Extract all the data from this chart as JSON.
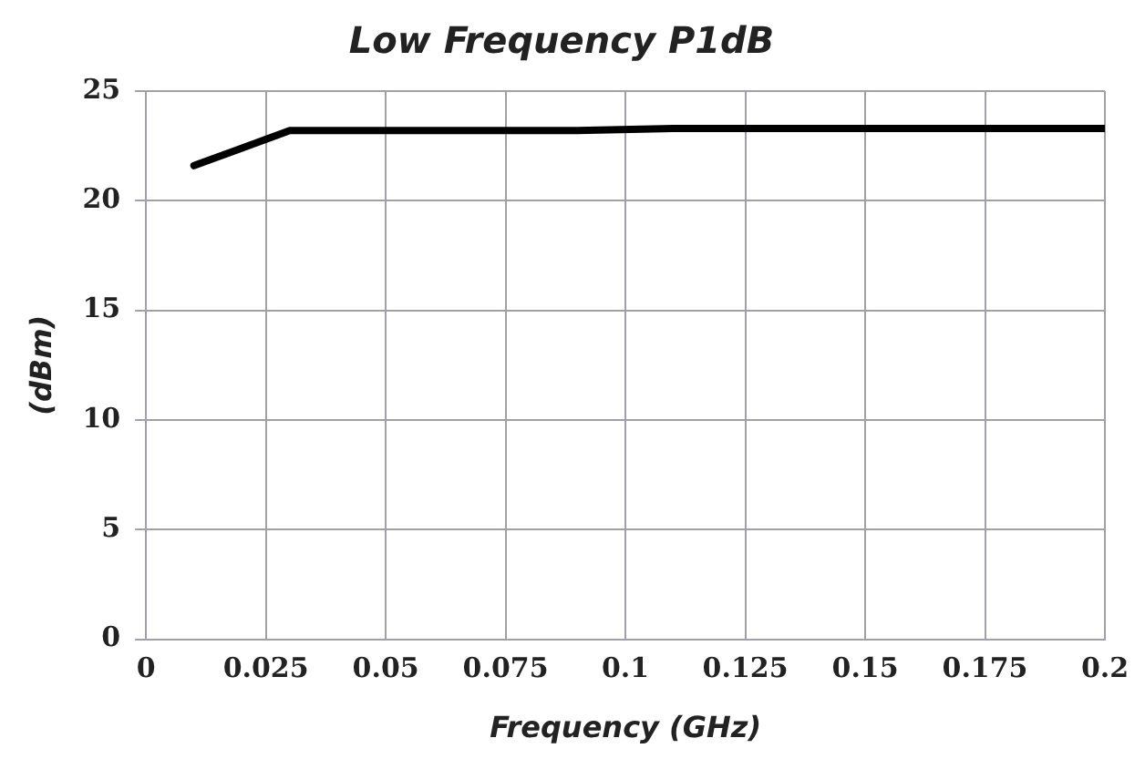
{
  "chart_data": {
    "type": "line",
    "title": "Low Frequency P1dB",
    "xlabel": "Frequency (GHz)",
    "ylabel": "(dBm)",
    "x": [
      0.01,
      0.03,
      0.05,
      0.07,
      0.09,
      0.11,
      0.13,
      0.15,
      0.17,
      0.19,
      0.2
    ],
    "series": [
      {
        "color": "#000000",
        "values": [
          21.6,
          23.2,
          23.2,
          23.2,
          23.2,
          23.3,
          23.3,
          23.3,
          23.3,
          23.3,
          23.3
        ]
      }
    ],
    "xlim": [
      0,
      0.2
    ],
    "xticks": [
      0,
      0.025,
      0.05,
      0.075,
      0.1,
      0.125,
      0.15,
      0.175,
      0.2
    ],
    "ylim": [
      0,
      25
    ],
    "yticks": [
      0,
      5,
      10,
      15,
      20,
      25
    ],
    "grid": true,
    "legend": false,
    "marker": "none",
    "line_style": "solid"
  }
}
